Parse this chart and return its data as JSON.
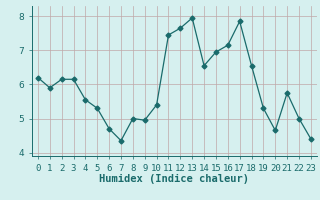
{
  "x": [
    0,
    1,
    2,
    3,
    4,
    5,
    6,
    7,
    8,
    9,
    10,
    11,
    12,
    13,
    14,
    15,
    16,
    17,
    18,
    19,
    20,
    21,
    22,
    23
  ],
  "y": [
    6.2,
    5.9,
    6.15,
    6.15,
    5.55,
    5.3,
    4.7,
    4.35,
    5.0,
    4.95,
    5.4,
    7.45,
    7.65,
    7.95,
    6.55,
    6.95,
    7.15,
    7.85,
    6.55,
    5.3,
    4.65,
    5.75,
    5.0,
    4.4
  ],
  "line_color": "#1a6b6b",
  "marker": "D",
  "marker_size": 2.5,
  "bg_color": "#d6f0ef",
  "grid_color_h": "#c0a8a8",
  "grid_color_v": "#c0a8a8",
  "xlabel": "Humidex (Indice chaleur)",
  "ylim": [
    3.9,
    8.3
  ],
  "xlim": [
    -0.5,
    23.5
  ],
  "yticks": [
    4,
    5,
    6,
    7,
    8
  ],
  "xticks": [
    0,
    1,
    2,
    3,
    4,
    5,
    6,
    7,
    8,
    9,
    10,
    11,
    12,
    13,
    14,
    15,
    16,
    17,
    18,
    19,
    20,
    21,
    22,
    23
  ],
  "xtick_labels": [
    "0",
    "1",
    "2",
    "3",
    "4",
    "5",
    "6",
    "7",
    "8",
    "9",
    "10",
    "11",
    "12",
    "13",
    "14",
    "15",
    "16",
    "17",
    "18",
    "19",
    "20",
    "21",
    "22",
    "23"
  ],
  "xlabel_fontsize": 7.5,
  "tick_fontsize": 6.5
}
